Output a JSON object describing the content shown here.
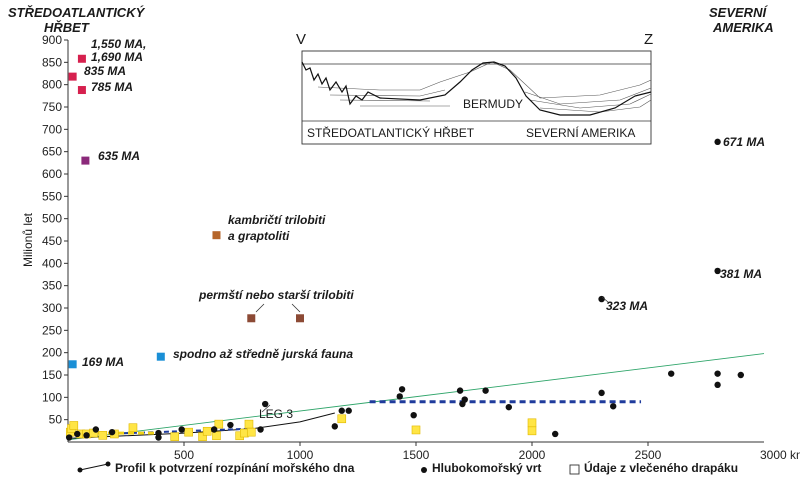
{
  "chart_data": {
    "type": "scatter",
    "xlabel": "",
    "ylabel": "Milionů let",
    "x_unit_label": "3000 km",
    "xlim": [
      0,
      3000
    ],
    "ylim": [
      0,
      900
    ],
    "x_ticks": [
      "500",
      "1000",
      "1500",
      "2000",
      "2500"
    ],
    "y_ticks": [
      "50",
      "100",
      "150",
      "200",
      "250",
      "300",
      "350",
      "400",
      "450",
      "500",
      "550",
      "600",
      "650",
      "700",
      "750",
      "800",
      "850",
      "900"
    ],
    "header_left": [
      "STŘEDOATLANTICKÝ",
      "HŘBET"
    ],
    "header_right": [
      "SEVERNÍ",
      "AMERIKA"
    ],
    "dredge_points": [
      {
        "x": 60,
        "y": 858,
        "color": "#d6204e"
      },
      {
        "x": 20,
        "y": 818,
        "color": "#d6204e"
      },
      {
        "x": 60,
        "y": 788,
        "color": "#d6204e"
      },
      {
        "x": 75,
        "y": 630,
        "color": "#8b2a7a"
      },
      {
        "x": 640,
        "y": 463,
        "color": "#b5652a"
      },
      {
        "x": 790,
        "y": 277,
        "color": "#8c4a35"
      },
      {
        "x": 1000,
        "y": 277,
        "color": "#8c4a35"
      },
      {
        "x": 20,
        "y": 174,
        "color": "#1a8fd6"
      },
      {
        "x": 400,
        "y": 191,
        "color": "#1a8fd6"
      }
    ],
    "yellow_squares": [
      {
        "x": 10,
        "y": 22
      },
      {
        "x": 15,
        "y": 30
      },
      {
        "x": 25,
        "y": 37
      },
      {
        "x": 55,
        "y": 18
      },
      {
        "x": 80,
        "y": 18
      },
      {
        "x": 110,
        "y": 20
      },
      {
        "x": 150,
        "y": 15
      },
      {
        "x": 200,
        "y": 18
      },
      {
        "x": 280,
        "y": 32
      },
      {
        "x": 460,
        "y": 12
      },
      {
        "x": 520,
        "y": 22
      },
      {
        "x": 580,
        "y": 12
      },
      {
        "x": 600,
        "y": 24
      },
      {
        "x": 640,
        "y": 14
      },
      {
        "x": 650,
        "y": 40
      },
      {
        "x": 740,
        "y": 14
      },
      {
        "x": 760,
        "y": 20
      },
      {
        "x": 780,
        "y": 40
      },
      {
        "x": 790,
        "y": 22
      },
      {
        "x": 1180,
        "y": 52
      },
      {
        "x": 1500,
        "y": 27
      },
      {
        "x": 2000,
        "y": 43
      },
      {
        "x": 2000,
        "y": 25
      }
    ],
    "black_dots": [
      {
        "x": 5,
        "y": 10
      },
      {
        "x": 40,
        "y": 18
      },
      {
        "x": 80,
        "y": 15
      },
      {
        "x": 120,
        "y": 28
      },
      {
        "x": 190,
        "y": 22
      },
      {
        "x": 390,
        "y": 10
      },
      {
        "x": 390,
        "y": 20
      },
      {
        "x": 490,
        "y": 28
      },
      {
        "x": 630,
        "y": 28
      },
      {
        "x": 700,
        "y": 38
      },
      {
        "x": 830,
        "y": 28
      },
      {
        "x": 850,
        "y": 85
      },
      {
        "x": 1150,
        "y": 35
      },
      {
        "x": 1180,
        "y": 70
      },
      {
        "x": 1210,
        "y": 70
      },
      {
        "x": 1430,
        "y": 102
      },
      {
        "x": 1440,
        "y": 118
      },
      {
        "x": 1490,
        "y": 60
      },
      {
        "x": 1690,
        "y": 115
      },
      {
        "x": 1700,
        "y": 85
      },
      {
        "x": 1710,
        "y": 95
      },
      {
        "x": 1800,
        "y": 115
      },
      {
        "x": 1900,
        "y": 78
      },
      {
        "x": 2100,
        "y": 18
      },
      {
        "x": 2300,
        "y": 110
      },
      {
        "x": 2350,
        "y": 80
      },
      {
        "x": 2600,
        "y": 153
      },
      {
        "x": 2800,
        "y": 153
      },
      {
        "x": 2800,
        "y": 128
      },
      {
        "x": 2900,
        "y": 150
      },
      {
        "x": 2300,
        "y": 320
      },
      {
        "x": 2800,
        "y": 383
      },
      {
        "x": 2800,
        "y": 672
      }
    ],
    "leg3_profile": [
      [
        0,
        8
      ],
      [
        500,
        20
      ],
      [
        800,
        30
      ],
      [
        1000,
        45
      ],
      [
        1150,
        65
      ]
    ],
    "green_trend": [
      [
        0,
        5
      ],
      [
        3000,
        198
      ]
    ],
    "blue_dashed_1": [
      [
        0,
        15
      ],
      [
        800,
        30
      ]
    ],
    "blue_dashed_2": [
      [
        1300,
        90
      ],
      [
        2470,
        90
      ]
    ],
    "yellow_dashed": [
      [
        0,
        20
      ],
      [
        400,
        20
      ]
    ],
    "annotations": {
      "a1550": [
        "1,550 MA,",
        "1,690 MA"
      ],
      "a835": "835 MA",
      "a785": "785 MA",
      "a635": "635 MA",
      "a671": "671 MA",
      "a381": "381 MA",
      "a323": "323 MA",
      "a169": "169 MA",
      "kambr": [
        "kambričtí trilobiti",
        "a graptoliti"
      ],
      "perm": "permští nebo starší trilobiti",
      "jura": "spodno až středně jurská fauna",
      "leg3": "LEG 3"
    },
    "inset": {
      "left_letter": "V",
      "right_letter": "Z",
      "bermudy": "BERMUDY",
      "bottom_left": "STŘEDOATLANTICKÝ HŘBET",
      "bottom_right": "SEVERNÍ AMERIKA"
    },
    "legend": {
      "profile": "Profil k potvrzení rozpínání mořského dna",
      "drill": "Hlubokomořský vrt",
      "dredge": "Údaje z vlečeného drapáku"
    }
  }
}
